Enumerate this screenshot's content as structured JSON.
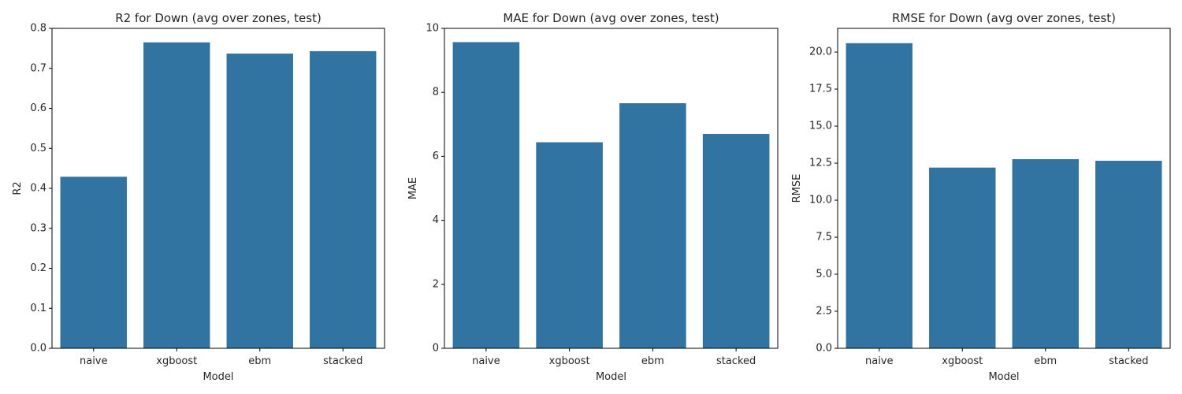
{
  "chart_data": [
    {
      "type": "bar",
      "title": "R2 for Down (avg over zones, test)",
      "xlabel": "Model",
      "ylabel": "R2",
      "categories": [
        "naive",
        "xgboost",
        "ebm",
        "stacked"
      ],
      "values": [
        0.429,
        0.765,
        0.737,
        0.743
      ],
      "ylim": [
        0,
        0.8
      ],
      "yticks": [
        0.0,
        0.1,
        0.2,
        0.3,
        0.4,
        0.5,
        0.6,
        0.7,
        0.8
      ],
      "ytick_labels": [
        "0.0",
        "0.1",
        "0.2",
        "0.3",
        "0.4",
        "0.5",
        "0.6",
        "0.7",
        "0.8"
      ],
      "bar_color": "#3274a1",
      "grid": false
    },
    {
      "type": "bar",
      "title": "MAE for Down (avg over zones, test)",
      "xlabel": "Model",
      "ylabel": "MAE",
      "categories": [
        "naive",
        "xgboost",
        "ebm",
        "stacked"
      ],
      "values": [
        9.57,
        6.44,
        7.66,
        6.7
      ],
      "ylim": [
        0,
        10
      ],
      "yticks": [
        0,
        2,
        4,
        6,
        8,
        10
      ],
      "ytick_labels": [
        "0",
        "2",
        "4",
        "6",
        "8",
        "10"
      ],
      "bar_color": "#3274a1",
      "grid": false
    },
    {
      "type": "bar",
      "title": "RMSE for Down (avg over zones, test)",
      "xlabel": "Model",
      "ylabel": "RMSE",
      "categories": [
        "naive",
        "xgboost",
        "ebm",
        "stacked"
      ],
      "values": [
        20.6,
        12.2,
        12.77,
        12.66
      ],
      "ylim": [
        0,
        21.6
      ],
      "yticks": [
        0.0,
        2.5,
        5.0,
        7.5,
        10.0,
        12.5,
        15.0,
        17.5,
        20.0
      ],
      "ytick_labels": [
        "0.0",
        "2.5",
        "5.0",
        "7.5",
        "10.0",
        "12.5",
        "15.0",
        "17.5",
        "20.0"
      ],
      "bar_color": "#3274a1",
      "grid": false
    }
  ]
}
